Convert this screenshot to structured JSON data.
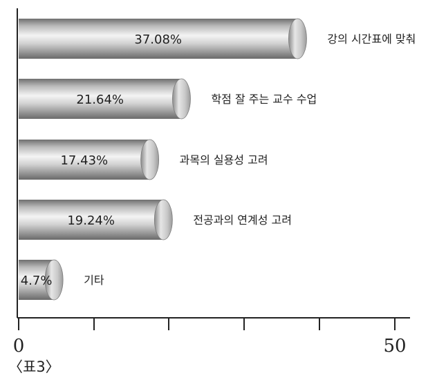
{
  "chart_data": {
    "type": "bar",
    "orientation": "horizontal",
    "categories": [
      "강의 시간표에 맞춰",
      "학점 잘 주는 교수 수업",
      "과목의 실용성 고려",
      "전공과의 연계성 고려",
      "기타"
    ],
    "values": [
      37.08,
      21.64,
      17.43,
      19.24,
      4.7
    ],
    "data_labels": [
      "37.08%",
      "21.64%",
      "17.43%",
      "19.24%",
      "4.7%"
    ],
    "xlim": [
      0,
      50
    ],
    "tick_labels": [
      "0",
      "50"
    ],
    "grid": false,
    "legend": "none"
  },
  "caption": "〈표3〉"
}
